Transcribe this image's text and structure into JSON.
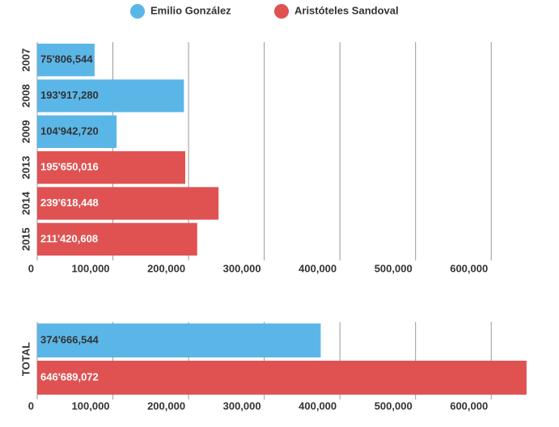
{
  "chart_data": [
    {
      "type": "bar",
      "orientation": "horizontal",
      "categories": [
        "2007",
        "2008",
        "2009",
        "2013",
        "2014",
        "2015"
      ],
      "values": [
        75806.544,
        193917.28,
        104942.72,
        195650.016,
        239618.448,
        211420.608
      ],
      "value_labels": [
        "75'806,544",
        "193'917,280",
        "104'942,720",
        "195'650,016",
        "239'618,448",
        "211'420,608"
      ],
      "colors": [
        "#5bb6e8",
        "#5bb6e8",
        "#5bb6e8",
        "#e05252",
        "#e05252",
        "#e05252"
      ],
      "xlim": [
        0,
        650000
      ],
      "xticks": [
        0,
        {
          "value": 100000,
          "label": "100,000"
        },
        {
          "value": 200000,
          "label": "200,000"
        },
        {
          "value": 300000,
          "label": "300,000"
        },
        {
          "value": 400000,
          "label": "400,000"
        },
        {
          "value": 500000,
          "label": "500,000"
        },
        {
          "value": 600000,
          "label": "600,000"
        }
      ],
      "grid": true
    },
    {
      "type": "bar",
      "orientation": "horizontal",
      "categories": [
        "TOTAL"
      ],
      "series": [
        {
          "name": "Emilio González",
          "color": "#5bb6e8",
          "values": [
            374666.544
          ],
          "value_labels": [
            "374'666,544"
          ]
        },
        {
          "name": "Aristóteles Sandoval",
          "color": "#e05252",
          "values": [
            646689.072
          ],
          "value_labels": [
            "646'689,072"
          ]
        }
      ],
      "xlim": [
        0,
        650000
      ],
      "xticks": [
        0,
        {
          "value": 100000,
          "label": "100,000"
        },
        {
          "value": 200000,
          "label": "200,000"
        },
        {
          "value": 300000,
          "label": "300,000"
        },
        {
          "value": 400000,
          "label": "400,000"
        },
        {
          "value": 500000,
          "label": "500,000"
        },
        {
          "value": 600000,
          "label": "600,000"
        }
      ],
      "grid": true,
      "legend": "top"
    }
  ]
}
